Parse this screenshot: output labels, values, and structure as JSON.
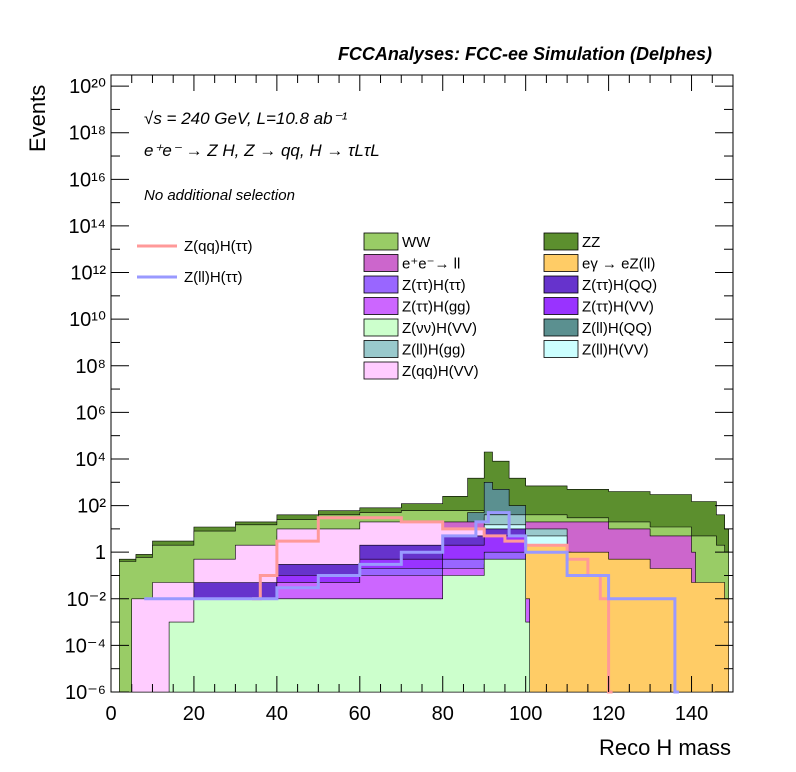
{
  "chart_data": {
    "type": "area",
    "title": "FCCAnalyses: FCC-ee Simulation (Delphes)",
    "annotations": {
      "energy_line": "√s = 240 GeV, L=10.8 ab⁻¹",
      "process_line": "e⁺e⁻ → Z H, Z → qq, H → τLτL",
      "selection_line": "No additional selection"
    },
    "xlabel": "Reco H mass",
    "ylabel": "Events",
    "xlim": [
      0,
      150
    ],
    "ylim": [
      1e-06,
      3e+20
    ],
    "log_y": true,
    "x_ticks": [
      0,
      20,
      40,
      60,
      80,
      100,
      120,
      140
    ],
    "y_ticks": [
      {
        "value": 1e-06,
        "label": "10⁻⁶"
      },
      {
        "value": 0.0001,
        "label": "10⁻⁴"
      },
      {
        "value": 0.01,
        "label": "10⁻²"
      },
      {
        "value": 1,
        "label": "1"
      },
      {
        "value": 100.0,
        "label": "10²"
      },
      {
        "value": 10000.0,
        "label": "10⁴"
      },
      {
        "value": 1000000.0,
        "label": "10⁶"
      },
      {
        "value": 100000000.0,
        "label": "10⁸"
      },
      {
        "value": 10000000000.0,
        "label": "10¹⁰"
      },
      {
        "value": 1000000000000.0,
        "label": "10¹²"
      },
      {
        "value": 100000000000000.0,
        "label": "10¹⁴"
      },
      {
        "value": 1e+16,
        "label": "10¹⁶"
      },
      {
        "value": 1e+18,
        "label": "10¹⁸"
      },
      {
        "value": 1e+20,
        "label": "10²⁰"
      }
    ],
    "legend_position": "top",
    "stacked_series": [
      {
        "name": "ZZ",
        "color": "#5c8f2e",
        "x": [
          2,
          6,
          10,
          20,
          30,
          40,
          50,
          60,
          70,
          80,
          86,
          90,
          92,
          96,
          100,
          110,
          120,
          130,
          140,
          146,
          148
        ],
        "y": [
          0.5,
          0.8,
          3,
          12,
          20,
          40,
          60,
          80,
          120,
          250,
          1500,
          20000,
          8000,
          1500,
          700,
          500,
          400,
          300,
          150,
          40,
          10
        ]
      },
      {
        "name": "WW",
        "color": "#99cc66",
        "x": [
          2,
          6,
          10,
          20,
          30,
          40,
          50,
          60,
          70,
          80,
          90,
          100,
          110,
          120,
          130,
          140,
          146,
          148
        ],
        "y": [
          0.4,
          0.6,
          2,
          8,
          15,
          25,
          40,
          50,
          60,
          60,
          50,
          40,
          30,
          20,
          12,
          5,
          2,
          1
        ]
      },
      {
        "name": "Z(ll)H(QQ)",
        "color": "#5b9090",
        "x": [
          40,
          60,
          80,
          86,
          90,
          92,
          96,
          100
        ],
        "y": [
          0.5,
          1,
          5,
          50,
          1000,
          500,
          100,
          10
        ]
      },
      {
        "name": "e⁺e⁻→ ll",
        "color": "#cc66cc",
        "x": [
          40,
          60,
          80,
          90,
          100,
          120,
          130,
          140
        ],
        "y": [
          5,
          10,
          20,
          30,
          20,
          10,
          5,
          1
        ]
      },
      {
        "name": "Z(ll)H(gg)",
        "color": "#99c9cc",
        "x": [
          40,
          60,
          80,
          90,
          100,
          110
        ],
        "y": [
          0.5,
          2,
          8,
          40,
          10,
          1
        ]
      },
      {
        "name": "Z(ll)H(VV)",
        "color": "#ccffff",
        "x": [
          20,
          40,
          60,
          80,
          90,
          100,
          110
        ],
        "y": [
          0.01,
          0.2,
          1,
          5,
          15,
          5,
          0.5
        ]
      },
      {
        "name": "Z(qq)H(VV)",
        "color": "#ffccff",
        "x": [
          5,
          10,
          20,
          30,
          40,
          60,
          80,
          90,
          96,
          100
        ],
        "y": [
          0.01,
          0.05,
          0.5,
          2,
          10,
          20,
          10,
          5,
          0.5,
          0.01
        ]
      },
      {
        "name": "eγ → eZ(ll)",
        "color": "#ffcc66",
        "x": [
          80,
          90,
          100,
          110,
          120,
          130,
          140,
          148
        ],
        "y": [
          0.1,
          1,
          2,
          1,
          0.5,
          0.2,
          0.05,
          0.01
        ]
      },
      {
        "name": "Z(ττ)H(QQ)",
        "color": "#6633cc",
        "x": [
          20,
          40,
          60,
          80,
          90,
          100
        ],
        "y": [
          0.05,
          0.3,
          2,
          5,
          10,
          0.01
        ]
      },
      {
        "name": "Z(ττ)H(VV)",
        "color": "#9933ff",
        "x": [
          20,
          40,
          60,
          80,
          90,
          100
        ],
        "y": [
          0.01,
          0.1,
          0.5,
          2,
          5,
          0.01
        ]
      },
      {
        "name": "Z(ττ)H(ττ)",
        "color": "#9966ff",
        "x": [
          30,
          40,
          60,
          80,
          90,
          100
        ],
        "y": [
          0.01,
          0.05,
          0.2,
          0.5,
          1,
          0.01
        ]
      },
      {
        "name": "Z(ττ)H(gg)",
        "color": "#cc66ff",
        "x": [
          20,
          40,
          60,
          80,
          90,
          100
        ],
        "y": [
          0.01,
          0.05,
          0.1,
          0.2,
          0.3,
          0.01
        ]
      },
      {
        "name": "Z(νν)H(VV)",
        "color": "#ccffcc",
        "x": [
          14,
          20,
          40,
          60,
          80,
          90,
          100
        ],
        "y": [
          0.001,
          0.01,
          0.01,
          0.01,
          0.1,
          0.5,
          0.001
        ]
      }
    ],
    "line_series": [
      {
        "name": "Z(qq)H(ττ)",
        "color": "#ff9999",
        "x": [
          34,
          36,
          40,
          50,
          60,
          70,
          80,
          90,
          95,
          100,
          110,
          115,
          118,
          120
        ],
        "y": [
          0.01,
          0.1,
          3,
          30,
          30,
          20,
          10,
          5,
          3,
          2,
          0.5,
          0.1,
          0.01,
          1e-06
        ]
      },
      {
        "name": "Z(ll)H(ττ)",
        "color": "#9999ff",
        "x": [
          8,
          10,
          14,
          16,
          20,
          30,
          40,
          50,
          60,
          70,
          80,
          88,
          91,
          96,
          100,
          110,
          120,
          130,
          134,
          136
        ],
        "y": [
          0.01,
          0.01,
          0.01,
          0.01,
          0.01,
          0.01,
          0.03,
          0.1,
          0.3,
          1,
          5,
          20,
          50,
          5,
          1,
          0.1,
          0.01,
          0.01,
          0.01,
          1e-06
        ]
      }
    ],
    "legend_left": [
      "Z(qq)H(ττ)",
      "Z(ll)H(ττ)"
    ],
    "legend_mid": [
      "WW",
      "e⁺e⁻→ ll",
      "Z(ττ)H(ττ)",
      "Z(ττ)H(gg)",
      "Z(νν)H(VV)",
      "Z(ll)H(gg)",
      "Z(qq)H(VV)"
    ],
    "legend_right": [
      "ZZ",
      "eγ → eZ(ll)",
      "Z(ττ)H(QQ)",
      "Z(ττ)H(VV)",
      "Z(ll)H(QQ)",
      "Z(ll)H(VV)"
    ]
  }
}
